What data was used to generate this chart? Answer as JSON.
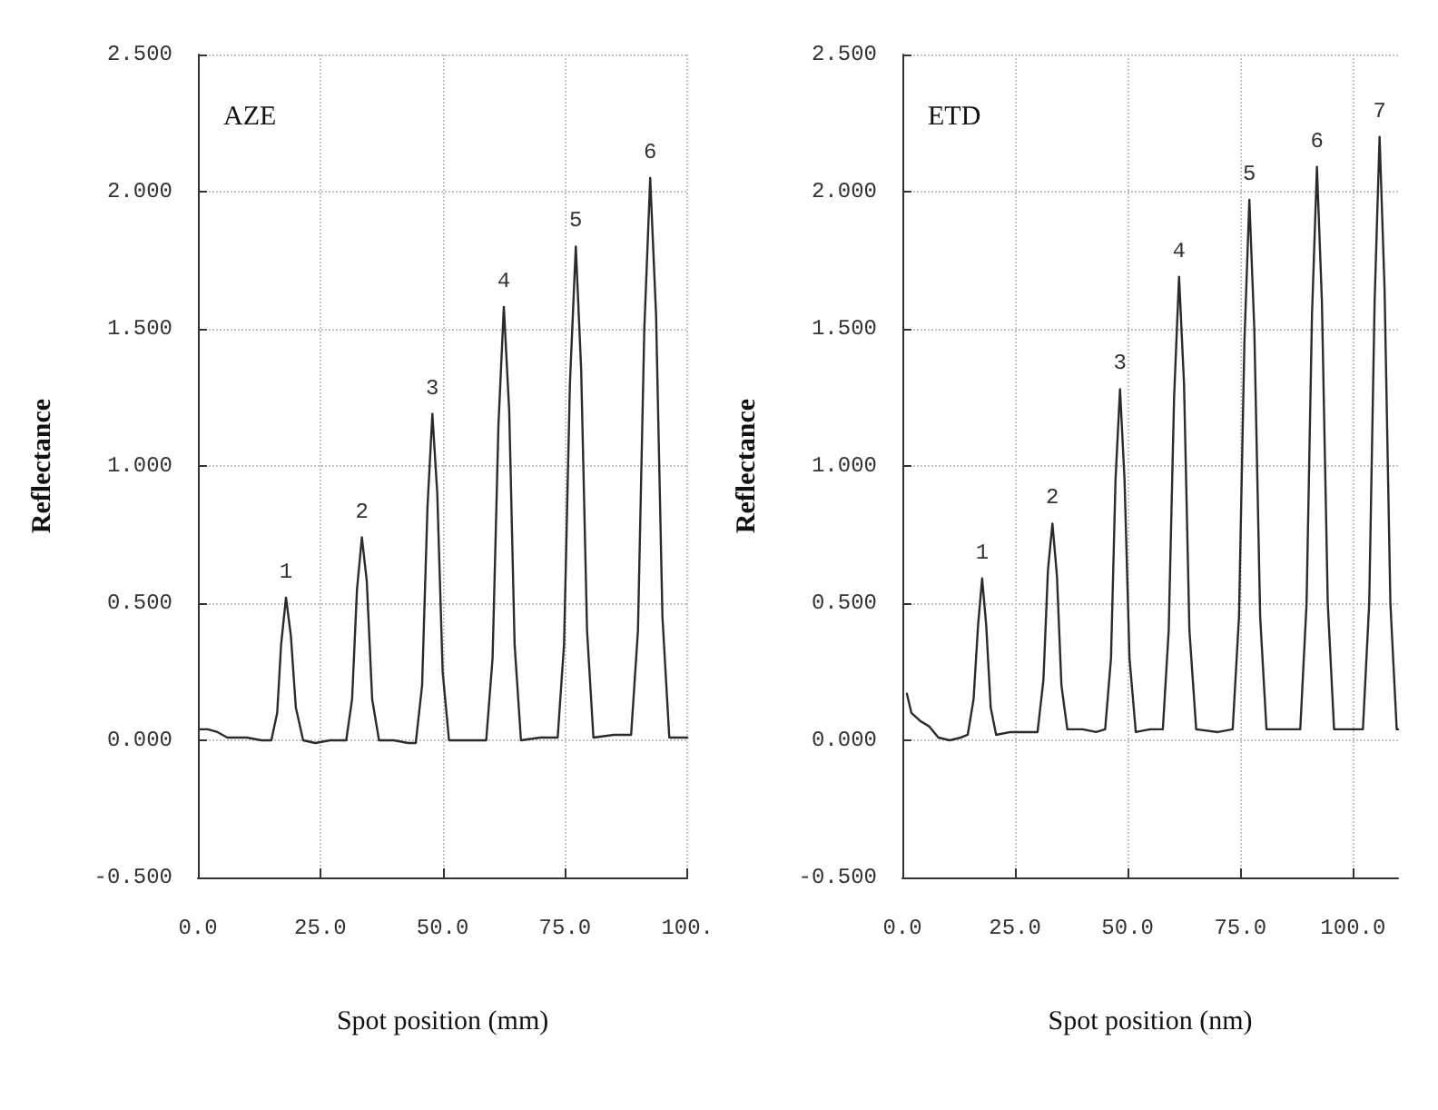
{
  "chart_data": [
    {
      "type": "line",
      "title": "AZE",
      "xlabel": "Spot position (mm)",
      "ylabel": "Reflectance",
      "color": "#2b2b2b",
      "marker": "none",
      "line_style": "solid",
      "grid": true,
      "xlim": [
        0,
        100
      ],
      "ylim": [
        -0.5,
        2.5
      ],
      "xticks": [
        {
          "value": 0,
          "label": "0.0"
        },
        {
          "value": 25,
          "label": "25.0"
        },
        {
          "value": 50,
          "label": "50.0"
        },
        {
          "value": 75,
          "label": "75.0"
        },
        {
          "value": 100,
          "label": "100."
        }
      ],
      "yticks": [
        {
          "value": -0.5,
          "label": "-0.500"
        },
        {
          "value": 0,
          "label": "0.000"
        },
        {
          "value": 0.5,
          "label": "0.500"
        },
        {
          "value": 1,
          "label": "1.000"
        },
        {
          "value": 1.5,
          "label": "1.500"
        },
        {
          "value": 2,
          "label": "2.000"
        },
        {
          "value": 2.5,
          "label": "2.500"
        }
      ],
      "x": [
        0.5,
        2,
        4,
        6,
        10,
        13,
        15.0,
        16.2,
        17.0,
        18.0,
        19.0,
        20.0,
        21.5,
        24,
        27,
        30.3,
        31.5,
        32.5,
        33.5,
        34.5,
        35.6,
        37,
        40,
        43,
        44.5,
        45.8,
        46.9,
        47.9,
        48.9,
        50.0,
        51.3,
        55,
        58.9,
        60.2,
        61.4,
        62.5,
        63.6,
        64.7,
        66.0,
        70,
        73.5,
        74.8,
        76.0,
        77.2,
        78.3,
        79.5,
        80.8,
        85,
        88.5,
        89.9,
        91.2,
        92.4,
        93.6,
        94.9,
        96.3,
        100
      ],
      "values": [
        0.04,
        0.04,
        0.03,
        0.01,
        0.01,
        0.0,
        0.0,
        0.1,
        0.35,
        0.52,
        0.38,
        0.12,
        0.0,
        -0.01,
        0.0,
        0.0,
        0.15,
        0.55,
        0.74,
        0.58,
        0.15,
        0.0,
        0.0,
        -0.01,
        -0.01,
        0.2,
        0.85,
        1.19,
        0.9,
        0.25,
        0.0,
        0.0,
        0.0,
        0.3,
        1.15,
        1.58,
        1.2,
        0.35,
        0.0,
        0.01,
        0.01,
        0.35,
        1.3,
        1.8,
        1.35,
        0.4,
        0.01,
        0.02,
        0.02,
        0.4,
        1.5,
        2.05,
        1.55,
        0.45,
        0.01,
        0.01
      ],
      "annotations": [
        {
          "text": "1",
          "x": 18.0,
          "y": 0.52
        },
        {
          "text": "2",
          "x": 33.5,
          "y": 0.74
        },
        {
          "text": "3",
          "x": 47.9,
          "y": 1.19
        },
        {
          "text": "4",
          "x": 62.5,
          "y": 1.58
        },
        {
          "text": "5",
          "x": 77.2,
          "y": 1.8
        },
        {
          "text": "6",
          "x": 92.4,
          "y": 2.05
        }
      ]
    },
    {
      "type": "line",
      "title": "ETD",
      "xlabel": "Spot position (nm)",
      "ylabel": "Reflectance",
      "color": "#2b2b2b",
      "marker": "none",
      "line_style": "solid",
      "grid": true,
      "xlim": [
        0,
        110
      ],
      "ylim": [
        -0.5,
        2.5
      ],
      "xticks": [
        {
          "value": 0,
          "label": "0.0"
        },
        {
          "value": 25,
          "label": "25.0"
        },
        {
          "value": 50,
          "label": "50.0"
        },
        {
          "value": 75,
          "label": "75.0"
        },
        {
          "value": 100,
          "label": "100.0"
        }
      ],
      "yticks": [
        {
          "value": -0.5,
          "label": "-0.500"
        },
        {
          "value": 0,
          "label": "0.000"
        },
        {
          "value": 0.5,
          "label": "0.500"
        },
        {
          "value": 1,
          "label": "1.000"
        },
        {
          "value": 1.5,
          "label": "1.500"
        },
        {
          "value": 2,
          "label": "2.000"
        },
        {
          "value": 2.5,
          "label": "2.500"
        }
      ],
      "x": [
        1.0,
        2.0,
        4.0,
        6.0,
        8.0,
        10.5,
        13,
        14.5,
        15.8,
        16.8,
        17.7,
        18.6,
        19.6,
        20.8,
        24,
        27,
        30.0,
        31.3,
        32.3,
        33.3,
        34.3,
        35.3,
        36.6,
        40,
        43,
        45.0,
        46.3,
        47.3,
        48.3,
        49.3,
        50.4,
        51.8,
        55,
        57.8,
        59.1,
        60.3,
        61.4,
        62.5,
        63.7,
        65.2,
        70,
        73.3,
        74.7,
        75.9,
        77.0,
        78.1,
        79.4,
        80.8,
        85,
        88.3,
        89.7,
        90.9,
        92.0,
        93.1,
        94.4,
        95.8,
        100,
        102.2,
        103.6,
        104.8,
        105.9,
        107.0,
        108.3,
        109.7,
        110
      ],
      "values": [
        0.17,
        0.1,
        0.07,
        0.05,
        0.01,
        0.0,
        0.01,
        0.02,
        0.15,
        0.42,
        0.59,
        0.42,
        0.12,
        0.02,
        0.03,
        0.03,
        0.03,
        0.22,
        0.62,
        0.79,
        0.6,
        0.2,
        0.04,
        0.04,
        0.03,
        0.04,
        0.3,
        0.95,
        1.28,
        0.95,
        0.3,
        0.03,
        0.04,
        0.04,
        0.4,
        1.25,
        1.69,
        1.3,
        0.4,
        0.04,
        0.03,
        0.04,
        0.45,
        1.45,
        1.97,
        1.5,
        0.45,
        0.04,
        0.04,
        0.04,
        0.5,
        1.55,
        2.09,
        1.6,
        0.5,
        0.04,
        0.04,
        0.04,
        0.5,
        1.6,
        2.2,
        1.65,
        0.5,
        0.04,
        0.04
      ],
      "annotations": [
        {
          "text": "1",
          "x": 17.7,
          "y": 0.59
        },
        {
          "text": "2",
          "x": 33.3,
          "y": 0.79
        },
        {
          "text": "3",
          "x": 48.3,
          "y": 1.28
        },
        {
          "text": "4",
          "x": 61.4,
          "y": 1.69
        },
        {
          "text": "5",
          "x": 77.0,
          "y": 1.97
        },
        {
          "text": "6",
          "x": 92.0,
          "y": 2.09
        },
        {
          "text": "7",
          "x": 105.9,
          "y": 2.2
        }
      ]
    }
  ]
}
